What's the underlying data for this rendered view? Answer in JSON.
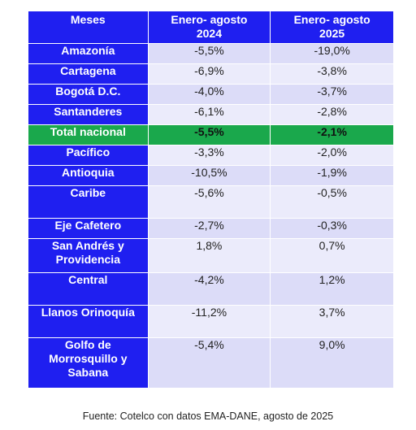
{
  "table": {
    "headers": {
      "region": "Meses",
      "col2024_line1": "Enero- agosto",
      "col2024_line2": "2024",
      "col2025_line1": "Enero- agosto",
      "col2025_line2": "2025"
    },
    "rows": [
      {
        "region": "Amazonía",
        "v2024": "-5,5%",
        "v2025": "-19,0%"
      },
      {
        "region": "Cartagena",
        "v2024": "-6,9%",
        "v2025": "-3,8%"
      },
      {
        "region": "Bogotá D.C.",
        "v2024": "-4,0%",
        "v2025": "-3,7%"
      },
      {
        "region": "Santanderes",
        "v2024": "-6,1%",
        "v2025": "-2,8%"
      },
      {
        "region": "Total nacional",
        "v2024": "-5,5%",
        "v2025": "-2,1%",
        "highlight": true
      },
      {
        "region": "Pacífico",
        "v2024": "-3,3%",
        "v2025": "-2,0%"
      },
      {
        "region": "Antioquia",
        "v2024": "-10,5%",
        "v2025": "-1,9%"
      },
      {
        "region": "Caribe",
        "v2024": "-5,6%",
        "v2025": "-0,5%"
      },
      {
        "region": "Eje Cafetero",
        "v2024": "-2,7%",
        "v2025": "-0,3%"
      },
      {
        "region": "San Andrés y Providencia",
        "v2024": "1,8%",
        "v2025": "0,7%"
      },
      {
        "region": "Central",
        "v2024": "-4,2%",
        "v2025": "1,2%"
      },
      {
        "region": "Llanos Orinoquía",
        "v2024": "-11,2%",
        "v2025": "3,7%"
      },
      {
        "region": "Golfo de Morrosquillo y Sabana",
        "v2024": "-5,4%",
        "v2025": "9,0%"
      }
    ]
  },
  "source": "Fuente: Cotelco con datos EMA-DANE, agosto de 2025",
  "colors": {
    "header_blue": "#1f1ff0",
    "total_green": "#1aa84c",
    "cell_light_a": "#dcdcf8",
    "cell_light_b": "#ebebfb"
  }
}
